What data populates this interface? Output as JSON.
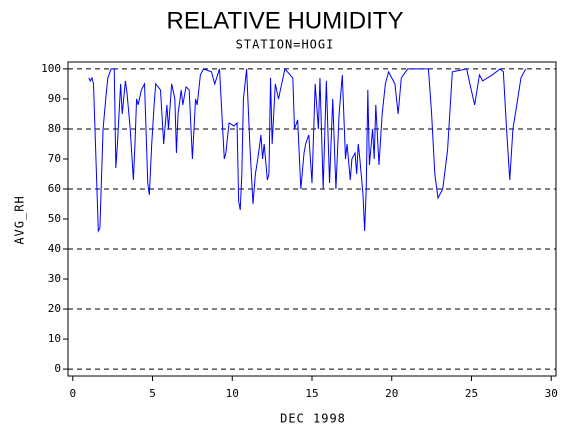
{
  "chart_data": {
    "type": "line",
    "title": "RELATIVE HUMIDITY",
    "subtitle": "STATION=HOGI",
    "x_label": "DEC 1998",
    "y_label": "AVG_RH",
    "xlim": [
      -0.3,
      30.3
    ],
    "ylim": [
      -2.3,
      102.3
    ],
    "xticks": [
      0,
      5,
      10,
      15,
      20,
      25,
      30
    ],
    "yticks": [
      0,
      10,
      20,
      30,
      40,
      50,
      60,
      70,
      80,
      90,
      100
    ],
    "grid_lines": [
      0,
      20,
      40,
      60,
      80,
      100
    ],
    "series": [
      {
        "name": "AVG_RH",
        "color": "#0000ff",
        "x": [
          1.0,
          1.1,
          1.2,
          1.3,
          1.6,
          1.7,
          1.9,
          2.1,
          2.2,
          2.4,
          2.6,
          2.7,
          2.8,
          3.0,
          3.1,
          3.3,
          3.4,
          3.6,
          3.8,
          3.9,
          4.0,
          4.1,
          4.3,
          4.5,
          4.7,
          4.8,
          4.95,
          5.1,
          5.2,
          5.5,
          5.7,
          5.9,
          6.0,
          6.2,
          6.4,
          6.5,
          6.6,
          6.8,
          6.9,
          7.1,
          7.3,
          7.5,
          7.7,
          7.8,
          8.0,
          8.2,
          8.7,
          8.9,
          9.2,
          9.5,
          9.6,
          9.8,
          10.1,
          10.3,
          10.4,
          10.5,
          10.6,
          10.7,
          10.9,
          11.1,
          11.3,
          11.45,
          11.6,
          11.8,
          11.9,
          12.0,
          12.2,
          12.3,
          12.4,
          12.5,
          12.7,
          12.9,
          13.3,
          13.8,
          13.9,
          14.1,
          14.3,
          14.5,
          14.6,
          14.8,
          15.0,
          15.2,
          15.4,
          15.5,
          15.7,
          15.9,
          16.1,
          16.3,
          16.5,
          16.7,
          16.9,
          17.1,
          17.2,
          17.4,
          17.5,
          17.7,
          17.8,
          17.9,
          18.0,
          18.2,
          18.3,
          18.4,
          18.5,
          18.6,
          18.8,
          18.9,
          19.0,
          19.2,
          19.4,
          19.6,
          19.8,
          20.2,
          20.4,
          20.6,
          21.0,
          22.3,
          22.5,
          22.7,
          22.9,
          23.2,
          23.5,
          23.8,
          24.7,
          24.9,
          25.2,
          25.5,
          25.7,
          26.3,
          26.8,
          27.0,
          27.2,
          27.4,
          27.6,
          27.9,
          28.1,
          28.4
        ],
        "values": [
          97,
          96,
          97,
          95,
          46,
          47,
          80,
          92,
          97,
          100,
          100,
          67,
          75,
          95,
          85,
          96,
          92,
          80,
          63,
          75,
          90,
          88,
          93,
          95,
          62,
          58,
          75,
          88,
          95,
          93,
          75,
          88,
          80,
          95,
          90,
          72,
          85,
          93,
          88,
          94,
          93,
          70,
          90,
          88,
          98,
          100,
          99,
          95,
          100,
          70,
          72,
          82,
          81,
          82,
          56,
          53,
          65,
          90,
          100,
          75,
          55,
          65,
          70,
          78,
          70,
          75,
          63,
          65,
          97,
          75,
          95,
          90,
          100,
          97,
          80,
          83,
          60,
          72,
          75,
          78,
          62,
          95,
          80,
          97,
          60,
          96,
          62,
          90,
          60,
          85,
          98,
          70,
          75,
          63,
          70,
          72,
          65,
          75,
          70,
          58,
          46,
          60,
          93,
          68,
          80,
          70,
          88,
          68,
          85,
          95,
          99,
          95,
          85,
          97,
          100,
          100,
          85,
          65,
          57,
          60,
          73,
          99,
          100,
          95,
          88,
          98,
          96,
          98,
          100,
          99,
          80,
          63,
          80,
          90,
          97,
          100
        ]
      }
    ]
  }
}
